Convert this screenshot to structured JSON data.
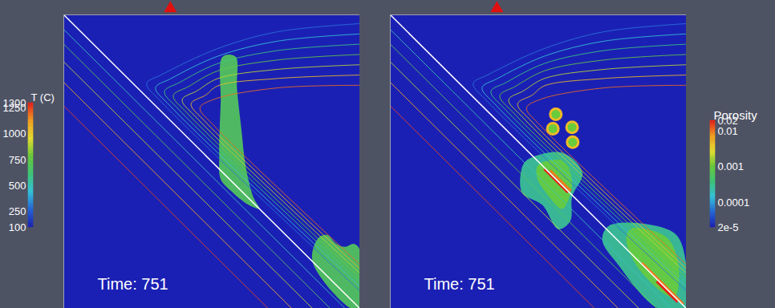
{
  "chart_data": {
    "type": "field",
    "xlim": [
      0,
      100
    ],
    "ylim": [
      100,
      0
    ],
    "tick_labels": false,
    "slab_surface": [
      [
        0,
        0
      ],
      [
        100,
        100
      ]
    ],
    "contours": [
      {
        "level": 300,
        "points": [
          [
            100,
            3
          ],
          [
            72,
            5.8
          ],
          [
            52,
            11.5
          ],
          [
            33,
            20.4
          ],
          [
            28,
            23.4
          ],
          [
            33,
            29.7
          ],
          [
            100,
            94
          ]
        ]
      },
      {
        "level": 450,
        "points": [
          [
            100,
            6.5
          ],
          [
            72,
            9.0
          ],
          [
            52,
            14.1
          ],
          [
            36,
            21.8
          ],
          [
            31,
            24.8
          ],
          [
            36,
            31.1
          ],
          [
            100,
            92.5
          ]
        ]
      },
      {
        "level": 600,
        "points": [
          [
            100,
            10
          ],
          [
            72,
            12.2
          ],
          [
            52,
            16.6
          ],
          [
            39,
            23.1
          ],
          [
            34,
            26.1
          ],
          [
            39,
            32.4
          ],
          [
            100,
            91
          ]
        ]
      },
      {
        "level": 750,
        "points": [
          [
            100,
            13.5
          ],
          [
            72,
            15.4
          ],
          [
            52,
            19.1
          ],
          [
            42,
            24.5
          ],
          [
            37,
            27.5
          ],
          [
            42,
            33.8
          ],
          [
            100,
            89.5
          ]
        ]
      },
      {
        "level": 900,
        "points": [
          [
            100,
            17
          ],
          [
            72,
            18.6
          ],
          [
            52,
            21.7
          ],
          [
            45,
            25.9
          ],
          [
            40,
            28.9
          ],
          [
            45,
            35.2
          ],
          [
            100,
            88
          ]
        ]
      },
      {
        "level": 1050,
        "points": [
          [
            100,
            20.5
          ],
          [
            72,
            21.7
          ],
          [
            52,
            24.2
          ],
          [
            48,
            27.3
          ],
          [
            43,
            30.3
          ],
          [
            48,
            36.6
          ],
          [
            100,
            86.5
          ]
        ]
      },
      {
        "level": 1200,
        "points": [
          [
            100,
            24
          ],
          [
            72,
            24.9
          ],
          [
            51,
            28.7
          ],
          [
            46,
            31.7
          ],
          [
            51,
            38.0
          ],
          [
            100,
            85
          ]
        ]
      },
      {
        "level": 500,
        "points": [
          [
            0,
            5
          ],
          [
            100,
            105
          ]
        ]
      },
      {
        "level": 700,
        "points": [
          [
            0,
            10
          ],
          [
            100,
            110
          ]
        ]
      },
      {
        "level": 900,
        "points": [
          [
            0,
            16
          ],
          [
            100,
            116
          ]
        ]
      },
      {
        "level": 1100,
        "points": [
          [
            0,
            23
          ],
          [
            100,
            123
          ]
        ]
      },
      {
        "level": 1250,
        "points": [
          [
            0,
            31
          ],
          [
            100,
            131
          ]
        ]
      }
    ],
    "panels": [
      {
        "time_label": "Time: 751",
        "surface_marker_x": 36,
        "legend": "left",
        "colorbar": {
          "title": "T (C)",
          "range": [
            100,
            1300
          ],
          "ticks": [
            1300,
            1250,
            1000,
            750,
            500,
            250,
            100
          ]
        },
        "regions": [
          {
            "value": 700,
            "points": [
              [
                53.7,
                14.2
              ],
              [
                58.0,
                14.2
              ],
              [
                58.5,
                25
              ],
              [
                60,
                39
              ],
              [
                61.5,
                52
              ],
              [
                64,
                62
              ],
              [
                66,
                66
              ],
              [
                62,
                64.5
              ],
              [
                56.5,
                60
              ],
              [
                53,
                56
              ],
              [
                52.5,
                48
              ],
              [
                53,
                30
              ]
            ]
          },
          {
            "value": 700,
            "points": [
              [
                84,
                84
              ],
              [
                86,
                76
              ],
              [
                89,
                75
              ],
              [
                92,
                78
              ],
              [
                95,
                79
              ],
              [
                98,
                78
              ],
              [
                100,
                80
              ],
              [
                100,
                100
              ],
              [
                97,
                100
              ]
            ]
          }
        ],
        "streaks": [],
        "bubbles": []
      },
      {
        "time_label": "Time: 751",
        "surface_marker_x": 36,
        "legend": "right",
        "colorbar": {
          "title": "Porosity",
          "log": true,
          "range": [
            2e-05,
            0.02
          ],
          "ticks": [
            0.02,
            0.01,
            0.001,
            0.0001,
            {
              "value": 2e-05,
              "label": "2e-5"
            }
          ]
        },
        "regions": [
          {
            "value": 0.0003,
            "points": [
              [
                45.9,
                49.7
              ],
              [
                58.1,
                47.0
              ],
              [
                64.9,
                53.8
              ],
              [
                61.4,
                62.0
              ],
              [
                60.8,
                70.2
              ],
              [
                56.8,
                73.0
              ],
              [
                51.4,
                64.8
              ],
              [
                44.6,
                60.7
              ],
              [
                44.1,
                53.8
              ]
            ]
          },
          {
            "value": 0.001,
            "points": [
              [
                50,
                51.1
              ],
              [
                58.1,
                49.7
              ],
              [
                61.4,
                56.6
              ],
              [
                58.1,
                66.1
              ],
              [
                52.7,
                60.7
              ],
              [
                49.5,
                55.2
              ]
            ]
          },
          {
            "value": 0.0003,
            "points": [
              [
                74.3,
                71.6
              ],
              [
                95.9,
                74.3
              ],
              [
                100,
                85.2
              ],
              [
                100,
                100
              ],
              [
                90.5,
                100
              ],
              [
                77,
                85.2
              ],
              [
                71.6,
                76.5
              ]
            ]
          },
          {
            "value": 0.001,
            "points": [
              [
                81.1,
                73.0
              ],
              [
                93.2,
                75.7
              ],
              [
                97.3,
                85.2
              ],
              [
                95.9,
                96.2
              ],
              [
                85.1,
                88.0
              ],
              [
                79.7,
                77.0
              ]
            ]
          }
        ],
        "streaks": [
          {
            "value": 0.02,
            "from": [
              52,
              52.5
            ],
            "to": [
              60,
              60.5
            ]
          },
          {
            "value": 0.01,
            "from": [
              54,
              53
            ],
            "to": [
              61,
              60
            ]
          },
          {
            "value": 0.01,
            "from": [
              85,
              84.5
            ],
            "to": [
              99,
              98.5
            ]
          },
          {
            "value": 0.02,
            "from": [
              90,
              90.8
            ],
            "to": [
              97,
              97.8
            ]
          }
        ],
        "bubbles": [
          {
            "x": 55.9,
            "y": 33.9,
            "center": 0.001,
            "rim": 0.005
          },
          {
            "x": 54.9,
            "y": 38.8,
            "center": 0.001,
            "rim": 0.005
          },
          {
            "x": 61.4,
            "y": 38.3,
            "center": 0.001,
            "rim": 0.005
          },
          {
            "x": 61.6,
            "y": 43.4,
            "center": 0.001,
            "rim": 0.005
          }
        ]
      }
    ]
  }
}
